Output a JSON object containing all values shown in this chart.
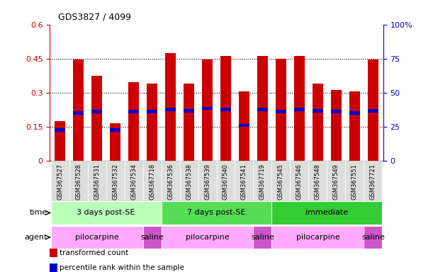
{
  "title": "GDS3827 / 4099",
  "samples": [
    "GSM367527",
    "GSM367528",
    "GSM367531",
    "GSM367532",
    "GSM367534",
    "GSM367718",
    "GSM367536",
    "GSM367538",
    "GSM367539",
    "GSM367540",
    "GSM367541",
    "GSM367719",
    "GSM367545",
    "GSM367546",
    "GSM367548",
    "GSM367549",
    "GSM367551",
    "GSM367721"
  ],
  "transformed_count": [
    0.175,
    0.445,
    0.375,
    0.165,
    0.345,
    0.34,
    0.475,
    0.34,
    0.445,
    0.46,
    0.305,
    0.46,
    0.45,
    0.46,
    0.34,
    0.31,
    0.305,
    0.445
  ],
  "percentile_rank": [
    0.135,
    0.21,
    0.215,
    0.135,
    0.215,
    0.215,
    0.225,
    0.22,
    0.23,
    0.225,
    0.155,
    0.225,
    0.215,
    0.225,
    0.22,
    0.215,
    0.21,
    0.22
  ],
  "bar_color": "#cc0000",
  "percentile_color": "#0000cc",
  "left_ylim": [
    0,
    0.6
  ],
  "right_ylim": [
    0,
    100
  ],
  "left_yticks": [
    0,
    0.15,
    0.3,
    0.45,
    0.6
  ],
  "left_ytick_labels": [
    "0",
    "0.15",
    "0.3",
    "0.45",
    "0.6"
  ],
  "right_yticks": [
    0,
    25,
    50,
    75,
    100
  ],
  "right_ytick_labels": [
    "0",
    "25",
    "50",
    "75",
    "100%"
  ],
  "dotted_lines": [
    0.15,
    0.3,
    0.45
  ],
  "time_groups": [
    {
      "label": "3 days post-SE",
      "start": 0,
      "end": 5,
      "color": "#bbffbb"
    },
    {
      "label": "7 days post-SE",
      "start": 6,
      "end": 11,
      "color": "#55dd55"
    },
    {
      "label": "immediate",
      "start": 12,
      "end": 17,
      "color": "#33cc33"
    }
  ],
  "agent_groups": [
    {
      "label": "pilocarpine",
      "start": 0,
      "end": 4,
      "color": "#ffaaff"
    },
    {
      "label": "saline",
      "start": 5,
      "end": 5,
      "color": "#cc55cc"
    },
    {
      "label": "pilocarpine",
      "start": 6,
      "end": 10,
      "color": "#ffaaff"
    },
    {
      "label": "saline",
      "start": 11,
      "end": 11,
      "color": "#cc55cc"
    },
    {
      "label": "pilocarpine",
      "start": 12,
      "end": 16,
      "color": "#ffaaff"
    },
    {
      "label": "saline",
      "start": 17,
      "end": 17,
      "color": "#cc55cc"
    }
  ],
  "legend_items": [
    {
      "label": "transformed count",
      "color": "#cc0000"
    },
    {
      "label": "percentile rank within the sample",
      "color": "#0000cc"
    }
  ],
  "bar_width": 0.6,
  "bg_color": "#ffffff",
  "tick_color_left": "#cc0000",
  "tick_color_right": "#0000cc",
  "xtick_bg": "#dddddd"
}
